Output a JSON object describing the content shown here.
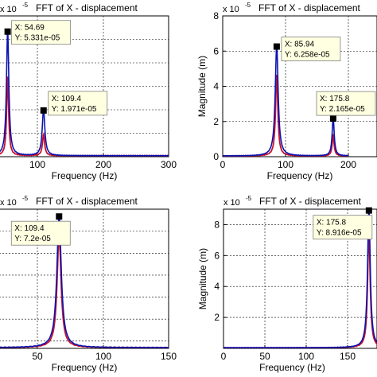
{
  "chart_data": [
    {
      "type": "line",
      "title": "FFT of X - displacement",
      "scale_note": "x 10",
      "scale_exp": "-5",
      "xlabel": "Frequency (Hz)",
      "ylabel": "",
      "xlim": [
        0,
        300
      ],
      "ylim": [
        0,
        6
      ],
      "xticks": [
        "",
        "100",
        "200",
        "300"
      ],
      "yticks": [],
      "grid": true,
      "series": [
        {
          "color": "#c8102e",
          "peaks": [
            {
              "x": 54.69,
              "y": 3.4,
              "w": 1.8
            },
            {
              "x": 109.4,
              "y": 0.9,
              "w": 2.0
            }
          ]
        },
        {
          "color": "#0a12b0",
          "peaks": [
            {
              "x": 54.69,
              "y": 5.331,
              "w": 2.2
            },
            {
              "x": 109.4,
              "y": 1.971,
              "w": 2.4
            }
          ]
        }
      ],
      "datatips": [
        {
          "x": 54.69,
          "y": 5.331,
          "lx": "X: 54.69",
          "ly": "Y: 5.331e-05"
        },
        {
          "x": 109.4,
          "y": 1.971,
          "lx": "X: 109.4",
          "ly": "Y: 1.971e-05"
        }
      ]
    },
    {
      "type": "line",
      "title": "FFT of X - displacement",
      "scale_note": "x 10",
      "scale_exp": "-5",
      "xlabel": "Frequency (Hz)",
      "ylabel": "Magnitude (m)",
      "xlim": [
        0,
        200
      ],
      "ylim": [
        0,
        8
      ],
      "xticks": [
        "0",
        "100",
        "200"
      ],
      "yticks": [
        "0",
        "2",
        "4",
        "6",
        "8"
      ],
      "grid": true,
      "series": [
        {
          "color": "#c8102e",
          "peaks": [
            {
              "x": 85.94,
              "y": 4.6,
              "w": 2.2
            },
            {
              "x": 175.8,
              "y": 1.2,
              "w": 1.8
            }
          ]
        },
        {
          "color": "#0a12b0",
          "peaks": [
            {
              "x": 85.94,
              "y": 6.258,
              "w": 2.8
            },
            {
              "x": 175.8,
              "y": 2.165,
              "w": 2.0
            }
          ]
        }
      ],
      "datatips": [
        {
          "x": 85.94,
          "y": 6.258,
          "lx": "X: 85.94",
          "ly": "Y: 6.258e-05"
        },
        {
          "x": 175.8,
          "y": 2.165,
          "lx": "X: 175.8",
          "ly": "Y: 2.165e-05"
        }
      ]
    },
    {
      "type": "line",
      "title": "FFT of X - displacement",
      "scale_note": "x 10",
      "scale_exp": "-5",
      "xlabel": "Frequency (Hz)",
      "ylabel": "",
      "xlim": [
        0,
        200
      ],
      "ylim": [
        0,
        7.6
      ],
      "xticks": [
        "",
        "50",
        "100",
        "150",
        "200"
      ],
      "yticks": [],
      "grid": true,
      "series": [
        {
          "color": "#c8102e",
          "peaks": [
            {
              "x": 109.4,
              "y": 6.1,
              "w": 2.0
            }
          ]
        },
        {
          "color": "#0a12b0",
          "peaks": [
            {
              "x": 109.4,
              "y": 7.2,
              "w": 2.2
            }
          ]
        }
      ],
      "datatips": [
        {
          "x": 109.4,
          "y": 7.2,
          "lx": "X: 109.4",
          "ly": "Y: 7.2e-05"
        }
      ]
    },
    {
      "type": "line",
      "title": "FFT of X - displacement",
      "scale_note": "x 10",
      "scale_exp": "-5",
      "xlabel": "Frequency (Hz)",
      "ylabel": "Magnitude (m)",
      "xlim": [
        0,
        200
      ],
      "ylim": [
        0,
        9
      ],
      "xticks": [
        "0",
        "50",
        "100",
        "150",
        ""
      ],
      "yticks": [
        "",
        "2",
        "4",
        "6",
        "8"
      ],
      "grid": true,
      "series": [
        {
          "color": "#c8102e",
          "peaks": [
            {
              "x": 175.8,
              "y": 7.6,
              "w": 1.8
            }
          ]
        },
        {
          "color": "#0a12b0",
          "peaks": [
            {
              "x": 175.8,
              "y": 8.916,
              "w": 2.0
            }
          ]
        }
      ],
      "datatips": [
        {
          "x": 175.8,
          "y": 8.916,
          "lx": "X: 175.8",
          "ly": "Y: 8.916e-05"
        }
      ]
    }
  ]
}
